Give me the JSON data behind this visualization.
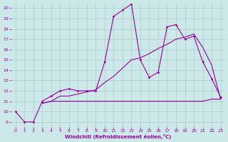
{
  "xlabel": "Windchill (Refroidissement éolien,°C)",
  "bg_color": "#cce8e8",
  "grid_color": "#aacccc",
  "line_color": "#990099",
  "xlim": [
    -0.5,
    23.5
  ],
  "ylim": [
    8.5,
    20.5
  ],
  "yticks": [
    9,
    10,
    11,
    12,
    13,
    14,
    15,
    16,
    17,
    18,
    19,
    20
  ],
  "xticks": [
    0,
    1,
    2,
    3,
    4,
    5,
    6,
    7,
    8,
    9,
    10,
    11,
    12,
    13,
    14,
    15,
    16,
    17,
    18,
    19,
    20,
    21,
    22,
    23
  ],
  "series1_x": [
    0,
    1,
    2,
    3,
    4,
    5,
    6,
    7,
    8,
    9,
    10,
    11,
    12,
    13,
    14,
    15,
    16,
    17,
    18,
    19,
    20,
    21,
    22,
    23
  ],
  "series1_y": [
    10.0,
    9.0,
    9.0,
    11.0,
    11.5,
    12.0,
    12.2,
    12.0,
    12.0,
    12.0,
    14.8,
    19.2,
    19.8,
    20.4,
    15.0,
    13.3,
    13.8,
    18.2,
    18.4,
    17.0,
    17.3,
    14.8,
    13.2,
    11.4
  ],
  "series2_x": [
    3,
    4,
    5,
    6,
    7,
    8,
    9,
    10,
    11,
    12,
    13,
    14,
    15,
    16,
    17,
    18,
    19,
    20,
    21,
    22,
    23
  ],
  "series2_y": [
    10.8,
    11.0,
    11.0,
    11.0,
    11.0,
    11.0,
    11.0,
    11.0,
    11.0,
    11.0,
    11.0,
    11.0,
    11.0,
    11.0,
    11.0,
    11.0,
    11.0,
    11.0,
    11.0,
    11.2,
    11.2
  ],
  "series3_x": [
    3,
    4,
    5,
    6,
    7,
    8,
    9,
    10,
    11,
    12,
    13,
    14,
    15,
    16,
    17,
    18,
    19,
    20,
    21,
    22,
    23
  ],
  "series3_y": [
    10.8,
    11.0,
    11.5,
    11.5,
    11.7,
    11.9,
    12.1,
    12.8,
    13.4,
    14.2,
    15.0,
    15.2,
    15.6,
    16.1,
    16.5,
    17.0,
    17.2,
    17.5,
    16.2,
    14.5,
    11.2
  ]
}
